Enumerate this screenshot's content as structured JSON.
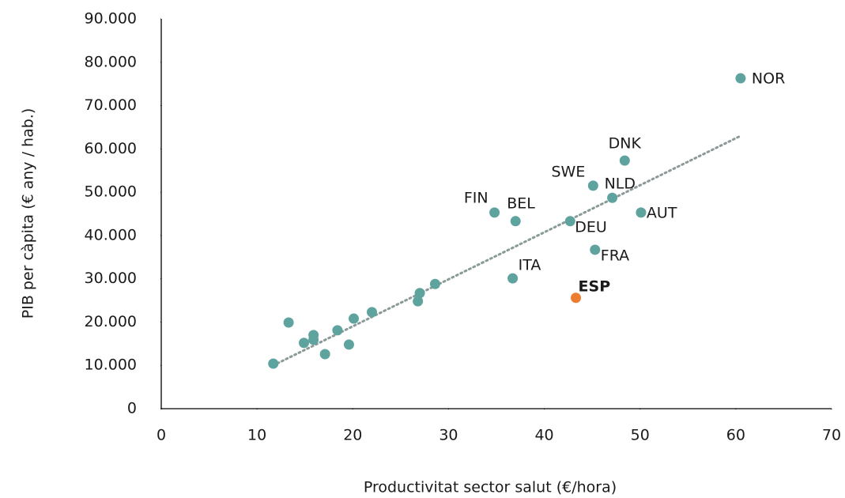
{
  "chart_data": {
    "type": "scatter",
    "xlabel": "Productivitat sector salut (€/hora)",
    "ylabel": "PIB per càpita (€ any / hab.)",
    "xlim": [
      0,
      70
    ],
    "xticks": [
      0,
      10,
      20,
      30,
      40,
      50,
      60,
      70
    ],
    "ylim": [
      0,
      90000
    ],
    "yticks": [
      0,
      {
        "value": 10000,
        "label": "10.000"
      },
      {
        "value": 20000,
        "label": "20.000"
      },
      {
        "value": 30000,
        "label": "30.000"
      },
      {
        "value": 40000,
        "label": "40.000"
      },
      {
        "value": 50000,
        "label": "50.000"
      },
      {
        "value": 60000,
        "label": "60.000"
      },
      {
        "value": 70000,
        "label": "70.000"
      },
      {
        "value": 80000,
        "label": "80.000"
      },
      {
        "value": 90000,
        "label": "90.000"
      }
    ],
    "series": [
      {
        "color": "#5fa39e",
        "x": [
          60.5,
          48.4,
          45.1,
          47.1,
          50.1,
          34.8,
          37.0,
          42.7,
          45.3,
          36.7,
          28.6,
          27.0,
          26.8,
          22.0,
          20.1,
          13.3,
          18.4,
          15.9,
          15.9,
          14.9,
          19.6,
          17.1,
          11.7
        ],
        "values": [
          76300,
          57300,
          51500,
          48700,
          45300,
          45300,
          43300,
          43300,
          36700,
          30100,
          28800,
          26700,
          24800,
          22300,
          20800,
          19900,
          18100,
          17000,
          15900,
          15200,
          14800,
          12600,
          10400
        ],
        "labels": [
          "NOR",
          "DNK",
          "SWE",
          "NLD",
          "AUT",
          "FIN",
          "BEL",
          "DEU",
          "FRA",
          "ITA",
          null,
          null,
          null,
          null,
          null,
          null,
          null,
          null,
          null,
          null,
          null,
          null,
          null
        ]
      },
      {
        "color": "#ed7d31",
        "x": [
          43.3
        ],
        "values": [
          25600
        ],
        "labels": [
          "ESP"
        ]
      }
    ],
    "trendline": {
      "color": "#8a9a98",
      "x": [
        11.7,
        60.5
      ],
      "values": [
        10000,
        63000
      ]
    }
  }
}
